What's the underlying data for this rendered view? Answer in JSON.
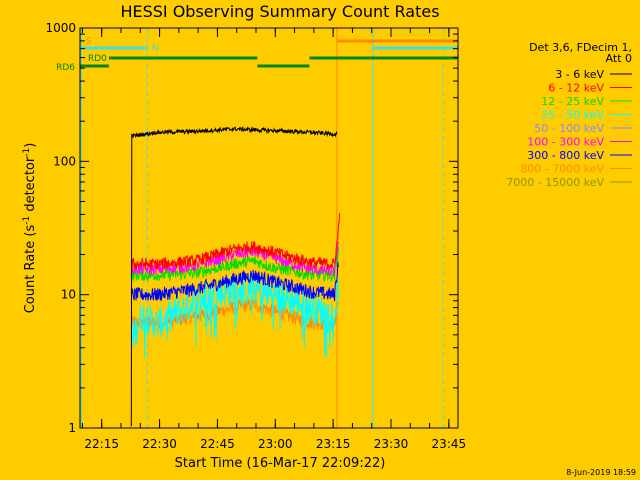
{
  "chart_data": {
    "type": "line",
    "title": "HESSI Observing Summary Count Rates",
    "xlabel": "Start Time (16-Mar-17 22:09:22)",
    "ylabel_main": "Count Rate (s",
    "ylabel_sup1": "-1",
    "ylabel_mid": " detector",
    "ylabel_sup2": "-1",
    "ylabel_end": ")",
    "yscale": "log",
    "ylim": [
      1,
      1000
    ],
    "xlim_minutes": [
      0,
      98
    ],
    "x_ticks": [
      {
        "label": "22:15",
        "t": 5.63
      },
      {
        "label": "22:30",
        "t": 20.63
      },
      {
        "label": "22:45",
        "t": 35.63
      },
      {
        "label": "23:00",
        "t": 50.63
      },
      {
        "label": "23:15",
        "t": 65.63
      },
      {
        "label": "23:30",
        "t": 80.63
      },
      {
        "label": "23:45",
        "t": 95.63
      }
    ],
    "y_ticks": [
      {
        "label": "1",
        "v": 1
      },
      {
        "label": "10",
        "v": 10
      },
      {
        "label": "100",
        "v": 100
      },
      {
        "label": "1000",
        "v": 1000
      }
    ],
    "legend_header": [
      "Det 3,6, FDecim 1,",
      "Att 0"
    ],
    "series": [
      {
        "name": "3 - 6 keV",
        "color": "#000000",
        "points": [
          [
            13.3,
            1
          ],
          [
            13.3,
            155
          ],
          [
            20,
            165
          ],
          [
            30,
            168
          ],
          [
            40,
            175
          ],
          [
            50,
            170
          ],
          [
            60,
            165
          ],
          [
            66.6,
            160
          ],
          [
            66.6,
            100
          ]
        ]
      },
      {
        "name": "6 - 12 keV",
        "color": "#FF0000",
        "points": [
          [
            13.3,
            17
          ],
          [
            20,
            17
          ],
          [
            30,
            18
          ],
          [
            40,
            22
          ],
          [
            45,
            23
          ],
          [
            50,
            21
          ],
          [
            55,
            19
          ],
          [
            60,
            17.5
          ],
          [
            66,
            17
          ],
          [
            67,
            30
          ],
          [
            67.3,
            45
          ]
        ]
      },
      {
        "name": "12 - 25 keV",
        "color": "#00DD00",
        "points": [
          [
            13.3,
            14
          ],
          [
            20,
            14
          ],
          [
            30,
            14.5
          ],
          [
            40,
            17
          ],
          [
            45,
            18
          ],
          [
            50,
            16
          ],
          [
            55,
            15
          ],
          [
            60,
            14
          ],
          [
            66,
            14
          ],
          [
            67,
            22
          ]
        ]
      },
      {
        "name": "25 - 50 keV",
        "color": "#00FFFF",
        "points": [
          [
            13.3,
            4.5
          ],
          [
            16,
            7
          ],
          [
            20,
            6
          ],
          [
            30,
            9
          ],
          [
            40,
            11
          ],
          [
            45,
            11
          ],
          [
            50,
            10
          ],
          [
            55,
            9
          ],
          [
            60,
            8
          ],
          [
            66,
            7
          ],
          [
            67,
            12
          ]
        ]
      },
      {
        "name": "50 - 100 keV",
        "color": "#8888FF",
        "points": []
      },
      {
        "name": "100 - 300 keV",
        "color": "#FF00FF",
        "points": [
          [
            13.3,
            15.5
          ],
          [
            20,
            15.5
          ],
          [
            30,
            16.5
          ],
          [
            40,
            20
          ],
          [
            45,
            21
          ],
          [
            50,
            19
          ],
          [
            55,
            17
          ],
          [
            60,
            15.5
          ],
          [
            66,
            15
          ],
          [
            67,
            26
          ]
        ]
      },
      {
        "name": "300 - 800 keV",
        "color": "#0000FF",
        "points": [
          [
            13.3,
            10
          ],
          [
            20,
            10
          ],
          [
            30,
            11
          ],
          [
            40,
            13
          ],
          [
            45,
            14
          ],
          [
            50,
            12.5
          ],
          [
            55,
            11.5
          ],
          [
            60,
            10.5
          ],
          [
            66,
            10
          ],
          [
            67,
            18
          ]
        ]
      },
      {
        "name": "800 - 7000 keV",
        "color": "#FF8C00",
        "points": [
          [
            13.3,
            6.2
          ],
          [
            20,
            6.2
          ],
          [
            30,
            6.8
          ],
          [
            40,
            8
          ],
          [
            45,
            8.5
          ],
          [
            50,
            7.5
          ],
          [
            55,
            6.8
          ],
          [
            60,
            6.2
          ],
          [
            66,
            6
          ],
          [
            67,
            9
          ]
        ]
      },
      {
        "name": "7000 - 15000 keV",
        "color": "#889900",
        "points": []
      }
    ],
    "flag_bars": [
      {
        "label": "S",
        "color": "#FF8C00",
        "segments": [
          [
            66.6,
            98
          ]
        ]
      },
      {
        "label": "N",
        "color": "#40E0E0",
        "segments": [
          [
            0,
            17.5
          ],
          [
            75.9,
            98
          ]
        ]
      },
      {
        "label": "RD0",
        "color": "#008800",
        "segments": [
          [
            7.5,
            46
          ],
          [
            59.5,
            98
          ]
        ]
      },
      {
        "label": "RD6",
        "color": "#008800",
        "segments": [
          [
            0,
            7.5
          ],
          [
            46,
            59.5
          ]
        ]
      }
    ],
    "vlines": [
      {
        "t": 0.3,
        "color": "#40E0E0",
        "dashed": false
      },
      {
        "t": 17.5,
        "color": "#40E0E0",
        "dashed": true
      },
      {
        "t": 66.6,
        "color": "#FF8C00",
        "dashed": false
      },
      {
        "t": 75.9,
        "color": "#40E0E0",
        "dashed": false
      },
      {
        "t": 94.2,
        "color": "#40E0E0",
        "dashed": true
      }
    ]
  },
  "footer_date": "8-Jun-2019 18:59"
}
